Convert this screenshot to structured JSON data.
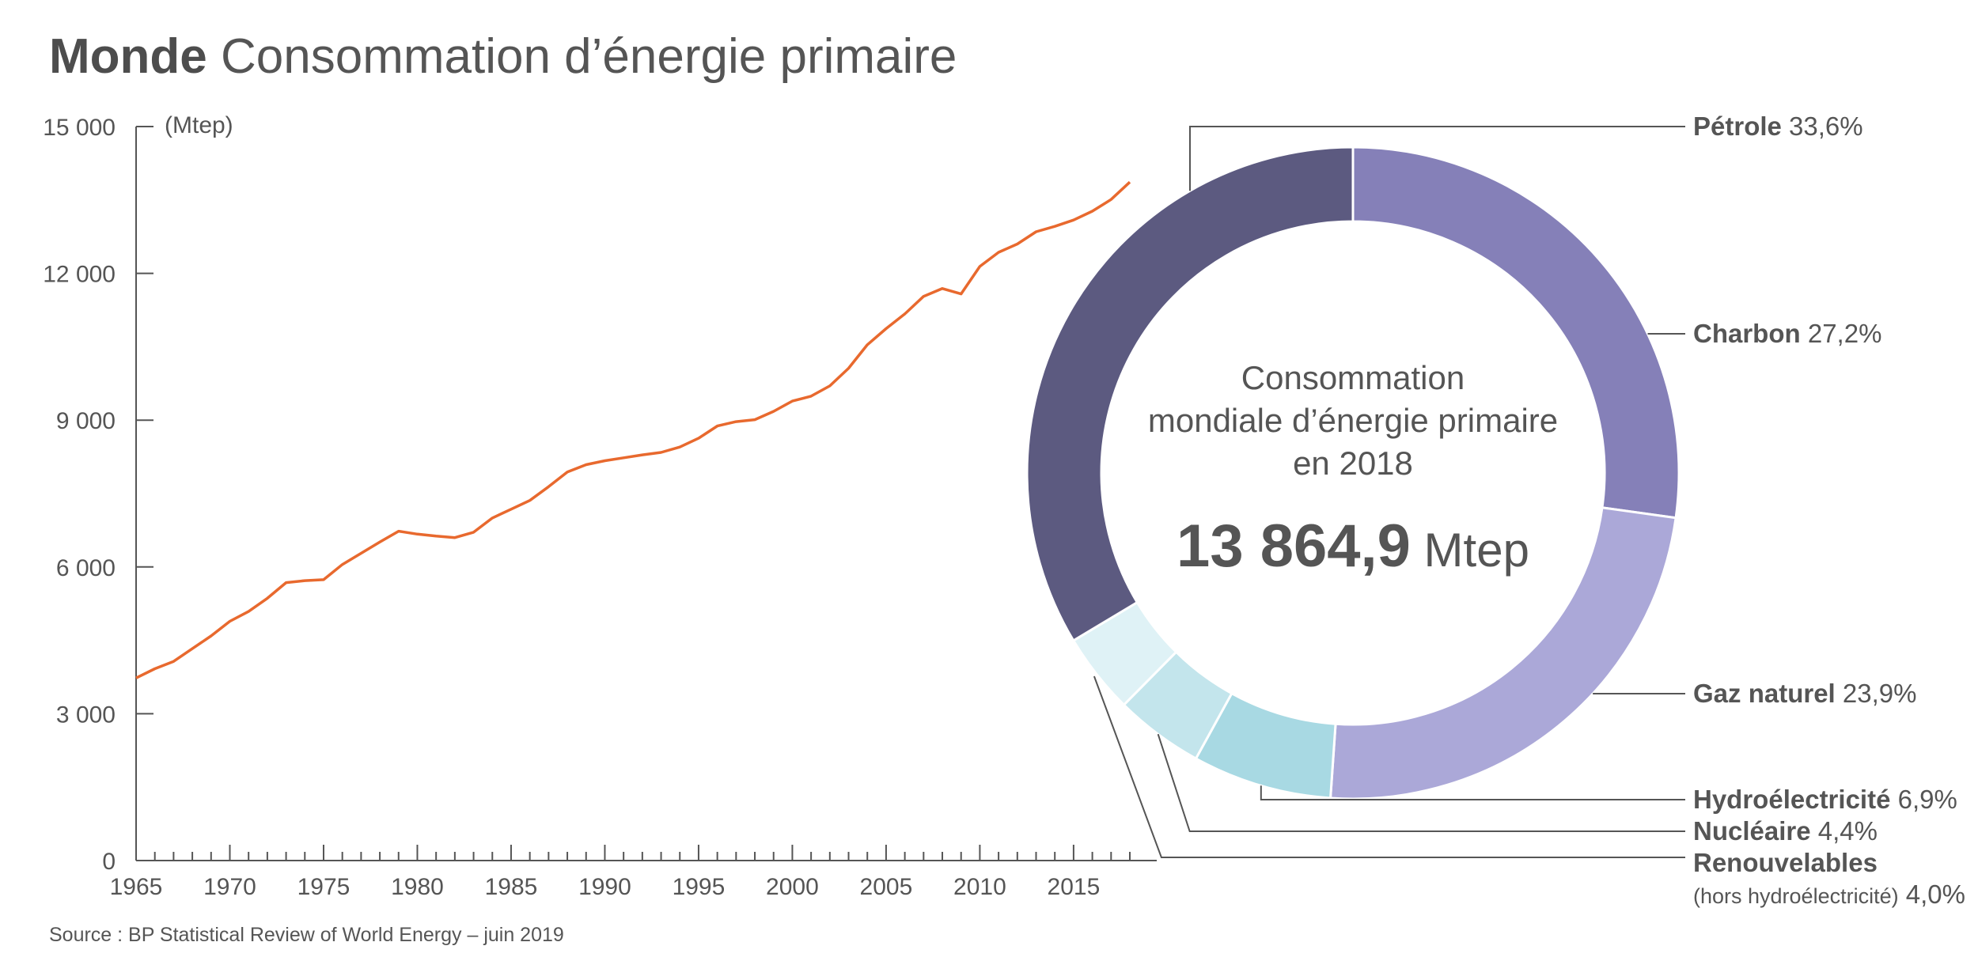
{
  "title": {
    "bold": "Monde",
    "light": "Consommation d’énergie primaire"
  },
  "source": "Source : BP Statistical Review of World Energy – juin 2019",
  "colors": {
    "line": "#e8692e",
    "axis": "#555555",
    "petrole": "#5c5a80",
    "charbon": "#8580b8",
    "gaz": "#aba8d8",
    "hydro": "#a8d9e3",
    "nucleaire": "#c3e5ec",
    "renouvelables": "#dff2f6"
  },
  "chart_data": [
    {
      "type": "line",
      "ylabel": "(Mtep)",
      "ylim": [
        0,
        15000
      ],
      "xlim": [
        1965,
        2018
      ],
      "yticks": [
        "0",
        "3 000",
        "6 000",
        "9 000",
        "12 000",
        "15 000"
      ],
      "xticks": [
        "1965",
        "1970",
        "1975",
        "1980",
        "1985",
        "1990",
        "1995",
        "2000",
        "2005",
        "2010",
        "2015"
      ],
      "x": [
        1965,
        1966,
        1967,
        1968,
        1969,
        1970,
        1971,
        1972,
        1973,
        1974,
        1975,
        1976,
        1977,
        1978,
        1979,
        1980,
        1981,
        1982,
        1983,
        1984,
        1985,
        1986,
        1987,
        1988,
        1989,
        1990,
        1991,
        1992,
        1993,
        1994,
        1995,
        1996,
        1997,
        1998,
        1999,
        2000,
        2001,
        2002,
        2003,
        2004,
        2005,
        2006,
        2007,
        2008,
        2009,
        2010,
        2011,
        2012,
        2013,
        2014,
        2015,
        2016,
        2017,
        2018
      ],
      "y": [
        3730,
        3920,
        4070,
        4330,
        4590,
        4890,
        5090,
        5360,
        5680,
        5720,
        5740,
        6050,
        6280,
        6510,
        6730,
        6670,
        6630,
        6600,
        6710,
        7000,
        7180,
        7360,
        7640,
        7940,
        8090,
        8170,
        8230,
        8290,
        8340,
        8450,
        8630,
        8880,
        8970,
        9010,
        9180,
        9390,
        9490,
        9700,
        10060,
        10540,
        10870,
        11170,
        11530,
        11690,
        11580,
        12140,
        12430,
        12600,
        12850,
        12960,
        13090,
        13270,
        13510,
        13865
      ]
    },
    {
      "type": "pie",
      "center_text": "Consommation mondiale d’énergie primaire en 2018",
      "center_lines": [
        "Consommation",
        "mondiale d’énergie primaire",
        "en 2018"
      ],
      "total_value": "13 864,9",
      "total_unit": "Mtep",
      "slices": [
        {
          "key": "petrole",
          "name": "Pétrole",
          "value": 33.6,
          "label": "33,6%",
          "sub": ""
        },
        {
          "key": "charbon",
          "name": "Charbon",
          "value": 27.2,
          "label": "27,2%",
          "sub": ""
        },
        {
          "key": "gaz",
          "name": "Gaz naturel",
          "value": 23.9,
          "label": "23,9%",
          "sub": ""
        },
        {
          "key": "hydro",
          "name": "Hydroélectricité",
          "value": 6.9,
          "label": "6,9%",
          "sub": ""
        },
        {
          "key": "nucleaire",
          "name": "Nucléaire",
          "value": 4.4,
          "label": "4,4%",
          "sub": ""
        },
        {
          "key": "renouvelables",
          "name": "Renouvelables",
          "value": 4.0,
          "label": "4,0%",
          "sub": "(hors hydroélectricité)"
        }
      ]
    }
  ]
}
